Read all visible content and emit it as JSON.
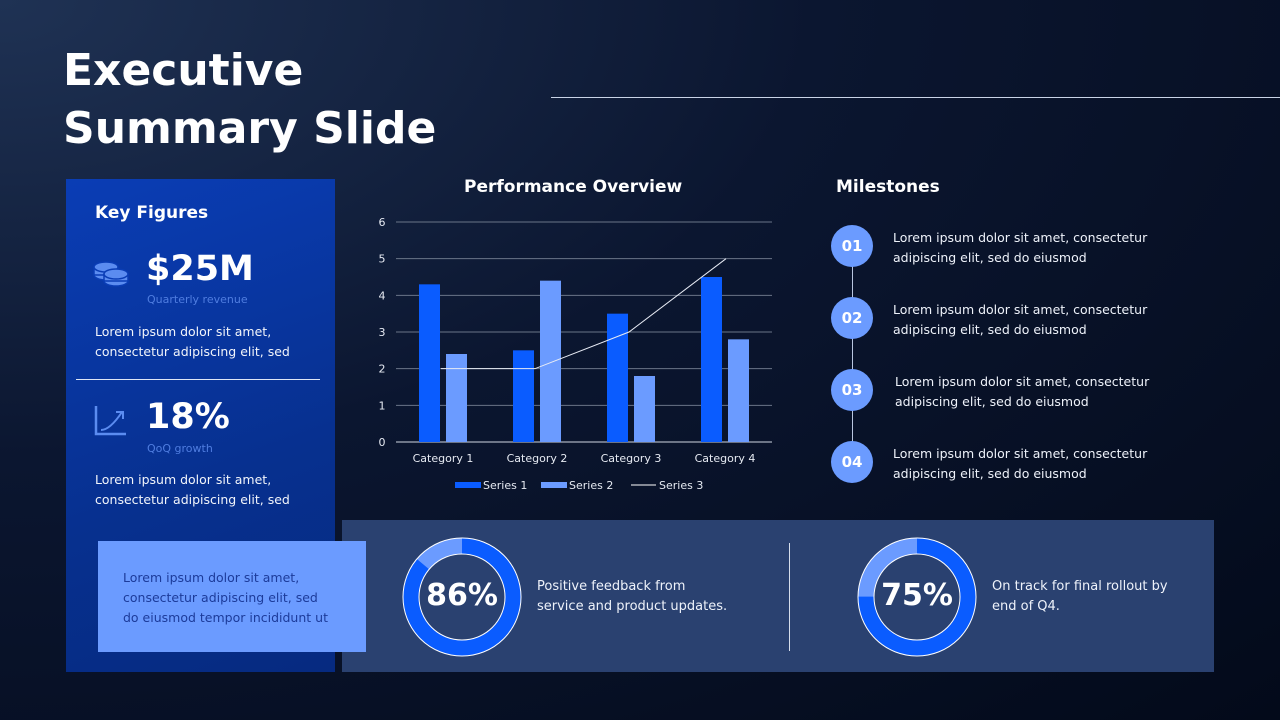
{
  "title": [
    "Executive",
    "Summary Slide"
  ],
  "key_figures": {
    "heading": "Key Figures",
    "items": [
      {
        "icon": "coins-icon",
        "value": "$25M",
        "label": "Quarterly revenue",
        "text": [
          "Lorem ipsum dolor sit amet,",
          "consectetur adipiscing elit, sed"
        ]
      },
      {
        "icon": "growth-chart-icon",
        "value": "18%",
        "label": "QoQ growth",
        "text": [
          "Lorem ipsum dolor sit amet,",
          "consectetur adipiscing elit, sed"
        ]
      }
    ],
    "note": [
      "Lorem ipsum dolor sit amet,",
      "consectetur adipiscing elit, sed",
      "do eiusmod tempor incididunt ut"
    ]
  },
  "chart_data": {
    "type": "bar",
    "title": "Performance Overview",
    "categories": [
      "Category 1",
      "Category 2",
      "Category 3",
      "Category 4"
    ],
    "series": [
      {
        "name": "Series 1",
        "type": "bar",
        "color": "#0a5cff",
        "values": [
          4.3,
          2.5,
          3.5,
          4.5
        ]
      },
      {
        "name": "Series 2",
        "type": "bar",
        "color": "#6b9bff",
        "values": [
          2.4,
          4.4,
          1.8,
          2.8
        ]
      },
      {
        "name": "Series 3",
        "type": "line",
        "color": "#ffffff",
        "values": [
          2,
          2,
          3,
          5
        ]
      }
    ],
    "ylim": [
      0,
      6
    ],
    "yticks": [
      "0",
      "1",
      "2",
      "3",
      "4",
      "5",
      "6"
    ],
    "grid": true,
    "legend": "bottom"
  },
  "milestones": {
    "heading": "Milestones",
    "items": [
      {
        "num": "01",
        "text": [
          "Lorem ipsum dolor sit amet, consectetur",
          "adipiscing elit, sed do eiusmod"
        ]
      },
      {
        "num": "02",
        "text": [
          "Lorem ipsum dolor sit amet, consectetur",
          "adipiscing elit, sed do eiusmod"
        ]
      },
      {
        "num": "03",
        "text": [
          "Lorem ipsum dolor sit amet, consectetur",
          "adipiscing elit, sed do eiusmod"
        ]
      },
      {
        "num": "04",
        "text": [
          "Lorem ipsum dolor sit amet, consectetur",
          "adipiscing elit, sed do eiusmod"
        ]
      }
    ]
  },
  "stats": [
    {
      "value": "86%",
      "fill": 0.86,
      "text": [
        "Positive feedback from",
        "service and product updates."
      ]
    },
    {
      "value": "75%",
      "fill": 0.75,
      "text": [
        "On track for final rollout by",
        "end of Q4."
      ]
    }
  ],
  "colors": {
    "accent": "#0a5cff",
    "light_accent": "#6b9bff",
    "panel": "#2a4170"
  }
}
